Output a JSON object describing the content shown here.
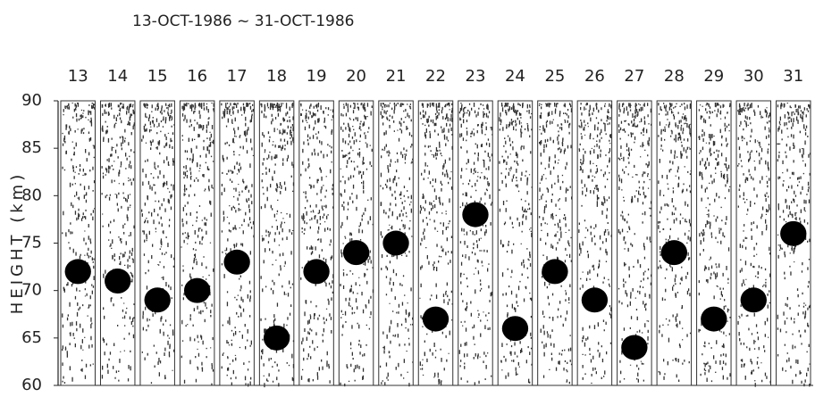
{
  "chart_data": {
    "type": "echo",
    "title": "13-OCT-1986 ~ 31-OCT-1986",
    "y_label": "HEIGHT (km)",
    "categories": [
      "13",
      "14",
      "15",
      "16",
      "17",
      "18",
      "19",
      "20",
      "21",
      "22",
      "23",
      "24",
      "25",
      "26",
      "27",
      "28",
      "29",
      "30",
      "31"
    ],
    "series": [
      {
        "name": null,
        "color": "#000000",
        "values": [
          72,
          71,
          69,
          70,
          73,
          65,
          72,
          74,
          75,
          67,
          78,
          66,
          72,
          69,
          64,
          74,
          67,
          69,
          76
        ]
      }
    ],
    "ylim": [
      60,
      90
    ],
    "yticks": [
      60,
      65,
      70,
      75,
      80,
      85,
      90
    ]
  }
}
